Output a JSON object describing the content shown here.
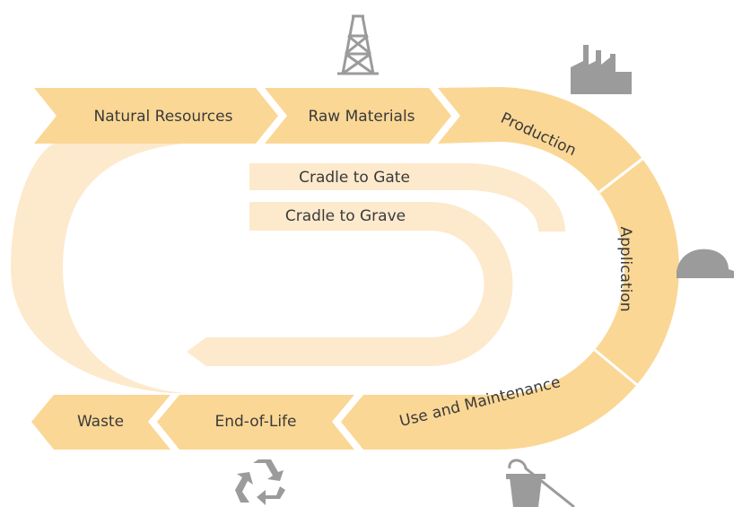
{
  "stages": [
    "Natural Resources",
    "Raw Materials",
    "Production",
    "Application",
    "Use and Maintenance",
    "End-of-Life",
    "Waste"
  ],
  "scopes": [
    "Cradle to Gate",
    "Cradle to Grave"
  ]
}
